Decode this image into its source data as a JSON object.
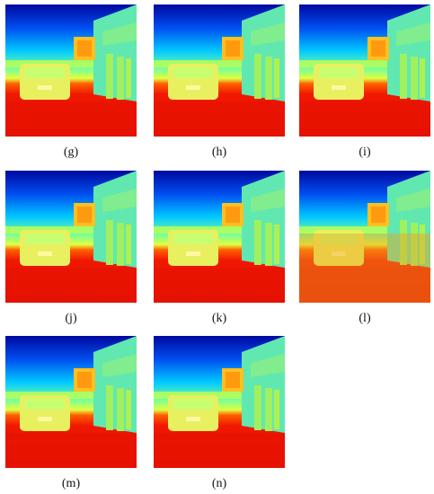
{
  "panels": [
    {
      "label": "(g)"
    },
    {
      "label": "(h)"
    },
    {
      "label": "(i)"
    },
    {
      "label": "(j)"
    },
    {
      "label": "(k)"
    },
    {
      "label": "(l)"
    },
    {
      "label": "(m)"
    },
    {
      "label": "(n)"
    }
  ]
}
